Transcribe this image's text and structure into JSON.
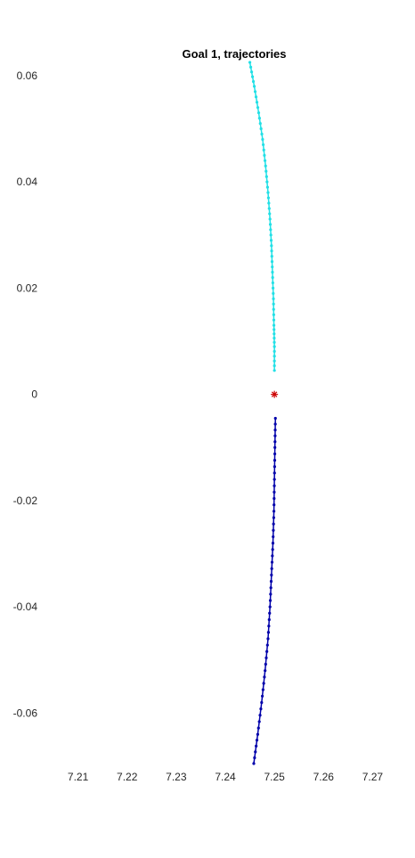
{
  "chart_data": {
    "type": "scatter",
    "title": "Goal 1, trajectories",
    "xlabel": "",
    "ylabel": "",
    "xlim": [
      7.205,
      7.275
    ],
    "ylim": [
      -0.07,
      0.0625
    ],
    "x_ticks": [
      "7.21",
      "7.22",
      "7.23",
      "7.24",
      "7.25",
      "7.26",
      "7.27"
    ],
    "y_ticks": [
      "0.06",
      "0.04",
      "0.02",
      "0",
      "-0.02",
      "-0.04",
      "-0.06"
    ],
    "x_tick_values": [
      7.21,
      7.22,
      7.23,
      7.24,
      7.25,
      7.26,
      7.27
    ],
    "y_tick_values": [
      0.06,
      0.04,
      0.02,
      0,
      -0.02,
      -0.04,
      -0.06
    ],
    "grid": false,
    "axes_visible": false,
    "colors": {
      "trajectory_1": "#22e0e6",
      "trajectory_2": "#0000aa",
      "goal": "#cc0000"
    },
    "series": [
      {
        "color": "#22e0e6",
        "marker": "dot",
        "points": [
          [
            7.245,
            0.0625
          ],
          [
            7.2459,
            0.058
          ],
          [
            7.2468,
            0.053
          ],
          [
            7.2476,
            0.048
          ],
          [
            7.2482,
            0.043
          ],
          [
            7.2487,
            0.038
          ],
          [
            7.2491,
            0.033
          ],
          [
            7.2494,
            0.028
          ],
          [
            7.2496,
            0.023
          ],
          [
            7.2498,
            0.018
          ],
          [
            7.2499,
            0.013
          ],
          [
            7.25,
            0.009
          ],
          [
            7.25,
            0.0045
          ]
        ]
      },
      {
        "color": "#0000aa",
        "marker": "dot",
        "points": [
          [
            7.2502,
            -0.0045
          ],
          [
            7.2501,
            -0.01
          ],
          [
            7.25,
            -0.016
          ],
          [
            7.2499,
            -0.022
          ],
          [
            7.2497,
            -0.028
          ],
          [
            7.2494,
            -0.034
          ],
          [
            7.2491,
            -0.04
          ],
          [
            7.2487,
            -0.046
          ],
          [
            7.2481,
            -0.052
          ],
          [
            7.2474,
            -0.058
          ],
          [
            7.2466,
            -0.064
          ],
          [
            7.2458,
            -0.0695
          ]
        ]
      },
      {
        "color": "#cc0000",
        "marker": "asterisk",
        "points": [
          [
            7.25,
            0.0
          ]
        ]
      }
    ]
  }
}
